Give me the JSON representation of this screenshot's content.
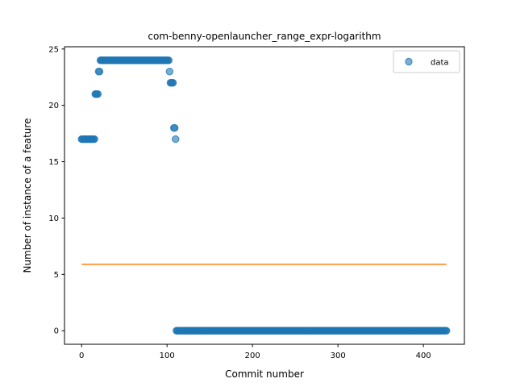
{
  "chart_data": {
    "type": "scatter",
    "title": "com-benny-openlauncher_range_expr-logarithm",
    "xlabel": "Commit number",
    "ylabel": "Number of instance of a feature",
    "xlim": [
      -20,
      448
    ],
    "ylim": [
      -1.2,
      25.2
    ],
    "xticks": [
      0,
      100,
      200,
      300,
      400
    ],
    "yticks": [
      0,
      5,
      10,
      15,
      20,
      25
    ],
    "legend": {
      "placement": "top-right",
      "entries": [
        "data"
      ]
    },
    "grid": false,
    "colors": {
      "points": "#1f77b4",
      "line": "#ff7f0e"
    },
    "series": [
      {
        "name": "data",
        "kind": "scatter",
        "segments": [
          {
            "x_start": 0,
            "x_end": 15,
            "y": 17
          },
          {
            "x_start": 16,
            "x_end": 19,
            "y": 21
          },
          {
            "x_start": 20,
            "x_end": 21,
            "y": 23
          },
          {
            "x_start": 22,
            "x_end": 102,
            "y": 24
          },
          {
            "x_start": 103,
            "x_end": 103,
            "y": 23
          },
          {
            "x_start": 104,
            "x_end": 107,
            "y": 22
          },
          {
            "x_start": 108,
            "x_end": 109,
            "y": 18
          },
          {
            "x_start": 110,
            "x_end": 110,
            "y": 17
          },
          {
            "x_start": 111,
            "x_end": 427,
            "y": 0
          }
        ]
      },
      {
        "kind": "line",
        "x": [
          0,
          427
        ],
        "y": [
          5.9,
          5.9
        ]
      }
    ]
  }
}
